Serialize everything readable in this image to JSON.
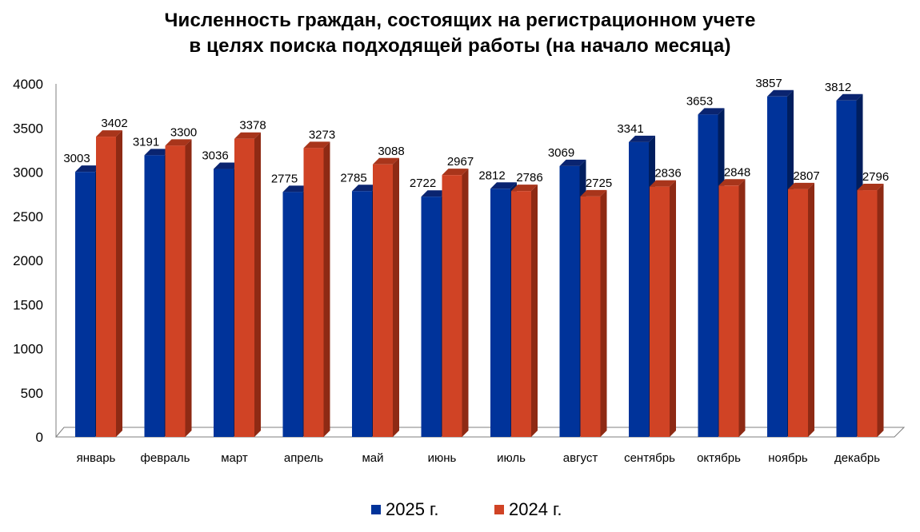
{
  "title_line1": "Численность граждан, состоящих на регистрационном учете",
  "title_line2": "в целях поиска подходящей работы (на начало месяца)",
  "colors": {
    "series_2025": "#00339A",
    "series_2024": "#D04325"
  },
  "chart_data": {
    "type": "bar",
    "title": "Численность граждан, состоящих на регистрационном учете в целях поиска подходящей работы (на начало месяца)",
    "categories": [
      "январь",
      "февраль",
      "март",
      "апрель",
      "май",
      "июнь",
      "июль",
      "август",
      "сентябрь",
      "октябрь",
      "ноябрь",
      "декабрь"
    ],
    "series": [
      {
        "name": "2025 г.",
        "values": [
          3003,
          3191,
          3036,
          2775,
          2785,
          2722,
          2812,
          3069,
          3341,
          3653,
          3857,
          3812
        ]
      },
      {
        "name": "2024 г.",
        "values": [
          3402,
          3300,
          3378,
          3273,
          3088,
          2967,
          2786,
          2725,
          2836,
          2848,
          2807,
          2796
        ]
      }
    ],
    "yticks": [
      "0",
      "500",
      "1000",
      "1500",
      "2000",
      "2500",
      "3000",
      "3500",
      "4000"
    ],
    "ylim": [
      0,
      4000
    ],
    "xlabel": "",
    "ylabel": "",
    "legend": "bottom",
    "grid": false,
    "style": "3d-clustered-column"
  }
}
